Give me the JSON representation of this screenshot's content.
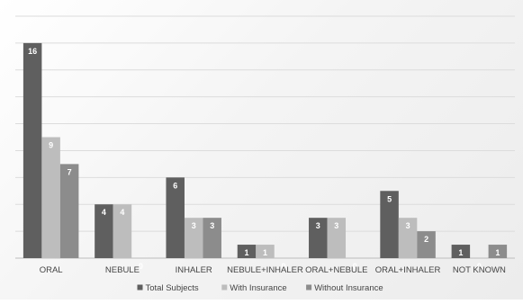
{
  "chart_data": {
    "type": "bar",
    "categories": [
      "ORAL",
      "NEBULE",
      "INHALER",
      "NEBULE+INHALER",
      "ORAL+NEBULE",
      "ORAL+INHALER",
      "NOT KNOWN"
    ],
    "series": [
      {
        "name": "Total Subjects",
        "values": [
          16,
          4,
          6,
          1,
          3,
          5,
          1
        ],
        "color": "#5f5f5f"
      },
      {
        "name": "With Insurance",
        "values": [
          9,
          4,
          3,
          1,
          3,
          3,
          0
        ],
        "color": "#bdbdbd"
      },
      {
        "name": "Without Insurance",
        "values": [
          7,
          0,
          3,
          0,
          0,
          2,
          1
        ],
        "color": "#8c8c8c"
      }
    ],
    "ylim": [
      0,
      18
    ],
    "grid": true,
    "legend_position": "bottom",
    "data_labels": true,
    "title": "",
    "xlabel": "",
    "ylabel": ""
  }
}
